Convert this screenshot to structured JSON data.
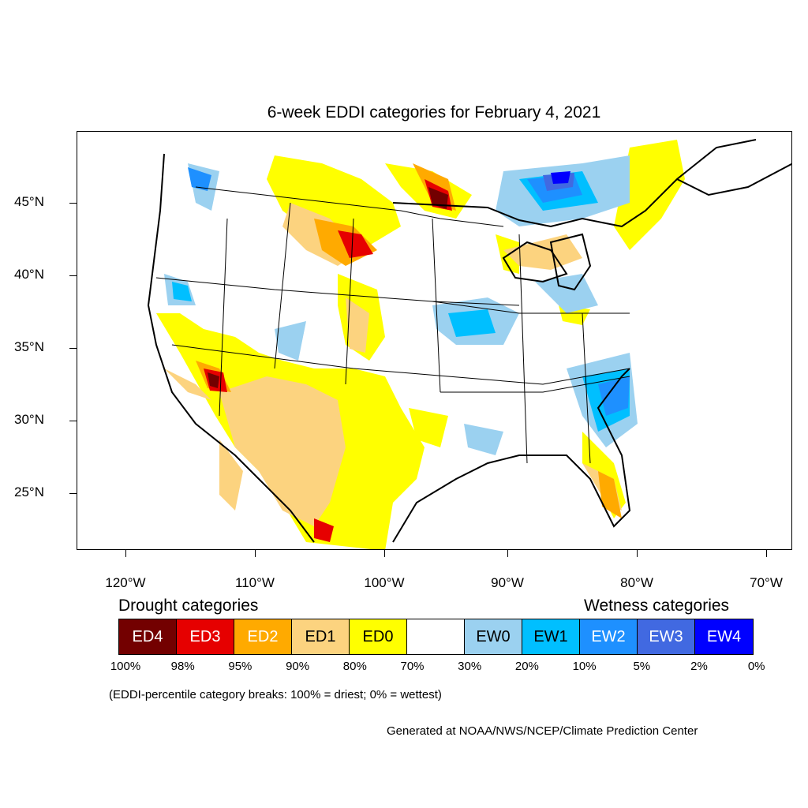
{
  "title": "6-week EDDI categories for February 4, 2021",
  "lat_labels": [
    "45°N",
    "40°N",
    "35°N",
    "30°N",
    "25°N"
  ],
  "lon_labels": [
    "120°W",
    "110°W",
    "100°W",
    "90°W",
    "80°W",
    "70°W"
  ],
  "legend": {
    "drought_title": "Drought categories",
    "wetness_title": "Wetness categories",
    "categories": [
      {
        "label": "ED4",
        "color": "#730000",
        "text_color": "#ffffff"
      },
      {
        "label": "ED3",
        "color": "#e60000",
        "text_color": "#ffffff"
      },
      {
        "label": "ED2",
        "color": "#ffaa00",
        "text_color": "#ffffff"
      },
      {
        "label": "ED1",
        "color": "#fcd37f",
        "text_color": "#000000"
      },
      {
        "label": "ED0",
        "color": "#ffff00",
        "text_color": "#000000"
      },
      {
        "label": "",
        "color": "#ffffff",
        "text_color": "#000000"
      },
      {
        "label": "EW0",
        "color": "#9bd1f0",
        "text_color": "#000000"
      },
      {
        "label": "EW1",
        "color": "#00bfff",
        "text_color": "#000000"
      },
      {
        "label": "EW2",
        "color": "#1e90ff",
        "text_color": "#ffffff"
      },
      {
        "label": "EW3",
        "color": "#4169e1",
        "text_color": "#ffffff"
      },
      {
        "label": "EW4",
        "color": "#0000ff",
        "text_color": "#ffffff"
      }
    ],
    "percentiles": [
      "100%",
      "98%",
      "95%",
      "90%",
      "80%",
      "70%",
      "30%",
      "20%",
      "10%",
      "5%",
      "2%",
      "0%"
    ]
  },
  "note": "(EDDI-percentile category breaks: 100% = driest; 0% = wettest)",
  "credit": "Generated at NOAA/NWS/NCEP/Climate Prediction Center"
}
